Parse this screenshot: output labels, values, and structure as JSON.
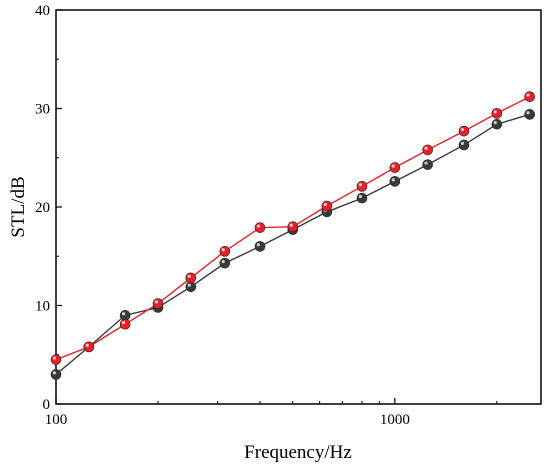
{
  "chart_data": {
    "type": "line",
    "xlabel": "Frequency/Hz",
    "ylabel": "STL/dB",
    "x_scale": "log",
    "xlim": [
      100,
      2700
    ],
    "ylim": [
      0,
      40
    ],
    "x_ticks": [
      100,
      1000
    ],
    "x_tick_labels": [
      "100",
      "1000"
    ],
    "y_ticks": [
      0,
      10,
      20,
      30,
      40
    ],
    "y_tick_labels": [
      "0",
      "10",
      "20",
      "30",
      "40"
    ],
    "grid": false,
    "legend": "none",
    "x": [
      100,
      125,
      160,
      200,
      250,
      315,
      400,
      500,
      630,
      800,
      1000,
      1250,
      1600,
      2000,
      2500
    ],
    "series": [
      {
        "color": "#3a3a3a",
        "values": [
          3.0,
          5.8,
          9.0,
          9.8,
          11.9,
          14.3,
          16.0,
          17.7,
          19.5,
          20.9,
          22.6,
          24.3,
          26.3,
          28.4,
          29.4
        ]
      },
      {
        "color": "#e8202a",
        "values": [
          4.5,
          5.8,
          8.1,
          10.2,
          12.8,
          15.5,
          17.9,
          18.0,
          20.1,
          22.1,
          24.0,
          25.8,
          27.7,
          29.5,
          31.2
        ]
      }
    ]
  }
}
